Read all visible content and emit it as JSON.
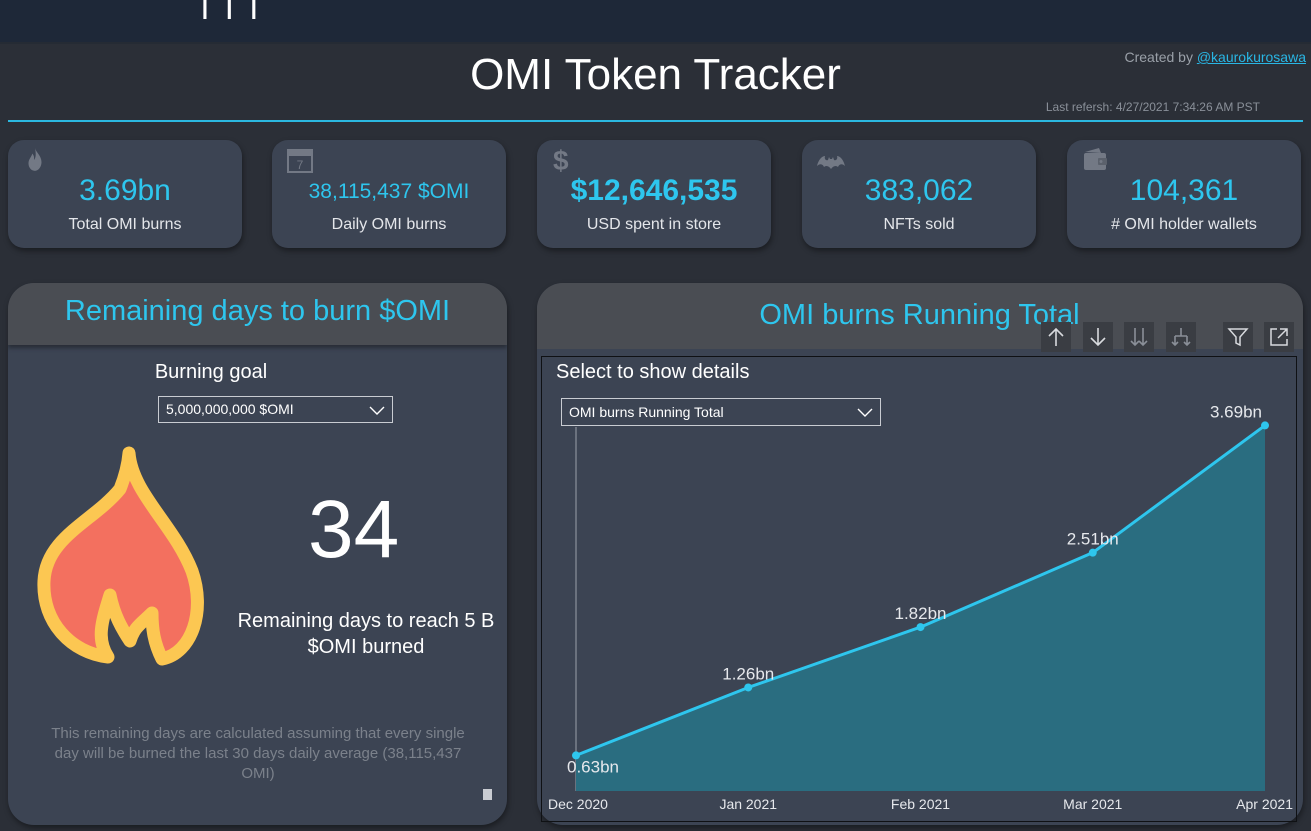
{
  "header": {
    "title": "OMI Token Tracker",
    "created_prefix": "Created by ",
    "created_author": "@kaurokurosawa",
    "last_refresh": "Last refersh: 4/27/2021 7:34:26 AM PST"
  },
  "kpis": [
    {
      "icon": "fire-icon",
      "value": "3.69bn",
      "label": "Total OMI burns"
    },
    {
      "icon": "calendar-icon",
      "value": "38,115,437 $OMI",
      "label": "Daily OMI burns",
      "calendar_day": "7"
    },
    {
      "icon": "dollar-icon",
      "value": "$12,646,535",
      "label": "USD spent in store"
    },
    {
      "icon": "batman-icon",
      "value": "383,062",
      "label": "NFTs sold"
    },
    {
      "icon": "wallet-icon",
      "value": "104,361",
      "label": "# OMI holder wallets"
    }
  ],
  "remaining_panel": {
    "title": "Remaining days to burn $OMI",
    "goal_label": "Burning goal",
    "goal_selected": "5,000,000,000 $OMI",
    "days": "34",
    "caption": "Remaining days to reach 5 B $OMI burned",
    "footnote": "This remaining days are calculated assuming that every single day will be burned the last 30 days daily average (38,115,437 OMI)"
  },
  "running_panel": {
    "title": "OMI burns Running Total",
    "heading": "Select to show details",
    "series_selected": "OMI burns Running Total",
    "toolbar": [
      "drill-up-icon",
      "drill-down-icon",
      "expand-next-level-icon",
      "expand-hierarchy-icon",
      "filter-icon",
      "focus-mode-icon"
    ]
  },
  "colors": {
    "accent": "#2ec6ee",
    "area_fill": "#2a6d80",
    "line": "#2ec6ee",
    "panel": "#3c4453",
    "background": "#2b2f37"
  },
  "chart_data": {
    "type": "area",
    "x": [
      "Dec 2020",
      "Jan 2021",
      "Feb 2021",
      "Mar 2021",
      "Apr 2021"
    ],
    "values": [
      0.63,
      1.26,
      1.82,
      2.51,
      3.69
    ],
    "labels": [
      "0.63bn",
      "1.26bn",
      "1.82bn",
      "2.51bn",
      "3.69bn"
    ],
    "ylim": [
      0.3,
      4.0
    ],
    "grid": false,
    "legend": "none"
  }
}
